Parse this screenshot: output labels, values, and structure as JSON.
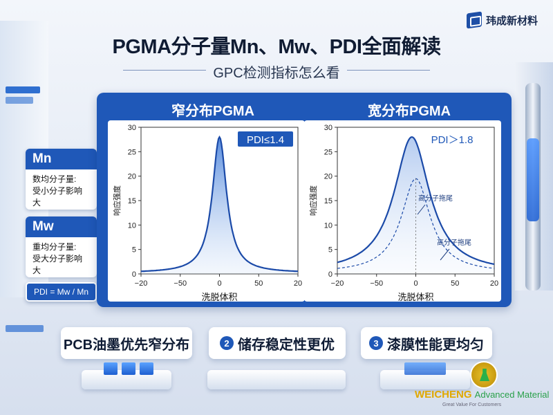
{
  "header": {
    "brand": "玮成新材料",
    "title": "PGMA分子量Mn、Mw、PDI全面解读",
    "subtitle": "GPC检测指标怎么看"
  },
  "colors": {
    "primary": "#1f58b8",
    "curve": "#1b4aa8",
    "fill": "#9cc2f0"
  },
  "panels": {
    "narrow_title": "窄分布PGMA",
    "wide_title": "宽分布PGMA"
  },
  "side": {
    "mn_head": "Mn",
    "mn_line1": "数均分子量:",
    "mn_line2": "受小分子影响大",
    "mw_head": "Mw",
    "mw_line1": "重均分子量:",
    "mw_line2": "受大分子影响大",
    "pdi_formula": "PDI = Mw / Mn"
  },
  "chart_data": [
    {
      "type": "line",
      "title": "窄分布PGMA",
      "xlabel": "洗脱体积",
      "ylabel": "响应强度",
      "xlim": [
        -20,
        20
      ],
      "ylim": [
        0,
        30
      ],
      "xticks": [
        -20,
        -50,
        0,
        50,
        20
      ],
      "xtick_labels": [
        "−20",
        "−50",
        "0",
        "50",
        "20"
      ],
      "yticks": [
        0,
        5,
        10,
        15,
        20,
        25,
        30
      ],
      "badge": "PDI≤1.4",
      "series": [
        {
          "peak_x": 0,
          "peak_y": 28,
          "half_width": 2.2,
          "base": 0.2
        }
      ]
    },
    {
      "type": "line",
      "title": "宽分布PGMA",
      "xlabel": "洗脱体积",
      "ylabel": "响应强度",
      "xlim": [
        -20,
        20
      ],
      "ylim": [
        0,
        30
      ],
      "xticks": [
        -20,
        -50,
        0,
        50,
        20
      ],
      "xtick_labels": [
        "−20",
        "−50",
        "0",
        "50",
        "20"
      ],
      "yticks": [
        0,
        5,
        10,
        15,
        20,
        25,
        30
      ],
      "badge": "PDI＞1.8",
      "annotations": [
        "高分子拖尾",
        "高分子拖尾"
      ],
      "series": [
        {
          "peak_x": -1,
          "peak_y": 28,
          "half_width": 5.5,
          "base": 0.2
        },
        {
          "peak_x": 0,
          "peak_y": 19.5,
          "half_width": 4.5,
          "base": 0.2,
          "dashed": true
        }
      ]
    }
  ],
  "features": [
    {
      "num": "",
      "label": "PCB油墨优先窄分布"
    },
    {
      "num": "2",
      "label": "储存稳定性更优"
    },
    {
      "num": "3",
      "label": "漆膜性能更均匀"
    }
  ],
  "footer": {
    "brand_main": "WEICHENG",
    "brand_sub": "Advanced Material",
    "tagline": "Great Value For Customers"
  }
}
